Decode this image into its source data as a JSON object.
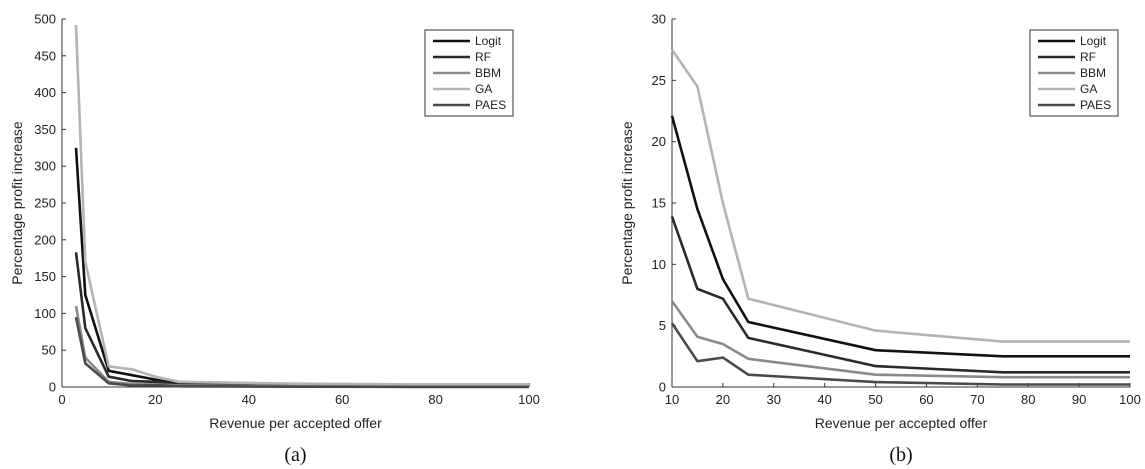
{
  "series_colors": [
    "#111111",
    "#2a2a2a",
    "#8a8a8a",
    "#b4b4b4",
    "#4a4a4a"
  ],
  "chart_data": [
    {
      "type": "line",
      "caption": "(a)",
      "xlabel": "Revenue per accepted offer",
      "ylabel": "Percentage profit increase",
      "xlim": [
        0,
        100
      ],
      "ylim": [
        0,
        500
      ],
      "xticks": [
        0,
        20,
        40,
        60,
        80,
        100
      ],
      "yticks": [
        0,
        50,
        100,
        150,
        200,
        250,
        300,
        350,
        400,
        450,
        500
      ],
      "legend_position": "top-right",
      "series": [
        {
          "name": "Logit",
          "x": [
            3,
            5,
            10,
            15,
            20,
            25,
            50,
            75,
            100
          ],
          "y": [
            325,
            125,
            22,
            16,
            10,
            4,
            2,
            2,
            2
          ]
        },
        {
          "name": "RF",
          "x": [
            3,
            5,
            10,
            15,
            20,
            25,
            50,
            75,
            100
          ],
          "y": [
            183,
            80,
            14,
            8,
            7,
            4,
            1.5,
            1.2,
            1.2
          ]
        },
        {
          "name": "BBM",
          "x": [
            3,
            5,
            10,
            15,
            20,
            25,
            50,
            75,
            100
          ],
          "y": [
            110,
            40,
            7,
            4,
            3.5,
            2.2,
            1,
            0.8,
            0.8
          ]
        },
        {
          "name": "GA",
          "x": [
            3,
            5,
            10,
            15,
            20,
            25,
            50,
            75,
            100
          ],
          "y": [
            492,
            170,
            28,
            24,
            14,
            7,
            4.5,
            3.5,
            3.5
          ]
        },
        {
          "name": "PAES",
          "x": [
            3,
            5,
            10,
            15,
            20,
            25,
            50,
            75,
            100
          ],
          "y": [
            95,
            32,
            5,
            2,
            2.4,
            1,
            0.4,
            0.2,
            0.2
          ]
        }
      ]
    },
    {
      "type": "line",
      "caption": "(b)",
      "xlabel": "Revenue per accepted offer",
      "ylabel": "Percentage profit increase",
      "xlim": [
        10,
        100
      ],
      "ylim": [
        0,
        30
      ],
      "xticks": [
        10,
        20,
        30,
        40,
        50,
        60,
        70,
        80,
        90,
        100
      ],
      "yticks": [
        0,
        5,
        10,
        15,
        20,
        25,
        30
      ],
      "legend_position": "top-right",
      "series": [
        {
          "name": "Logit",
          "x": [
            10,
            15,
            20,
            25,
            50,
            75,
            100
          ],
          "y": [
            22.1,
            14.5,
            8.8,
            5.3,
            3.0,
            2.5,
            2.5
          ]
        },
        {
          "name": "RF",
          "x": [
            10,
            15,
            20,
            25,
            50,
            75,
            100
          ],
          "y": [
            13.9,
            8.0,
            7.2,
            4.0,
            1.7,
            1.2,
            1.2
          ]
        },
        {
          "name": "BBM",
          "x": [
            10,
            15,
            20,
            25,
            50,
            75,
            100
          ],
          "y": [
            7.0,
            4.1,
            3.5,
            2.3,
            1.0,
            0.8,
            0.8
          ]
        },
        {
          "name": "GA",
          "x": [
            10,
            15,
            20,
            25,
            50,
            75,
            100
          ],
          "y": [
            27.5,
            24.5,
            15.0,
            7.2,
            4.6,
            3.7,
            3.7
          ]
        },
        {
          "name": "PAES",
          "x": [
            10,
            15,
            20,
            25,
            50,
            75,
            100
          ],
          "y": [
            5.2,
            2.1,
            2.4,
            1.0,
            0.4,
            0.2,
            0.2
          ]
        }
      ]
    }
  ]
}
